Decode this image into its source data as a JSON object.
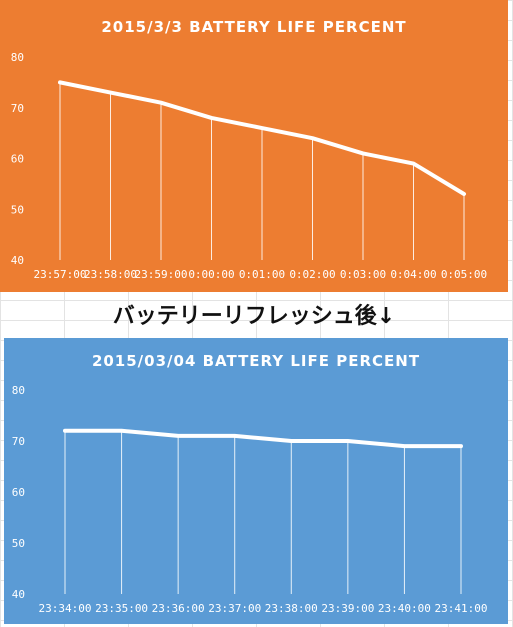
{
  "caption": "バッテリーリフレッシュ後↓",
  "chart_data": [
    {
      "type": "line",
      "title": "2015/3/3   BATTERY LIFE PERCENT",
      "background": "#ED7D31",
      "line_color": "#FFFFFF",
      "categories": [
        "23:57:00",
        "23:58:00",
        "23:59:00",
        "0:00:00",
        "0:01:00",
        "0:02:00",
        "0:03:00",
        "0:04:00",
        "0:05:00"
      ],
      "values": [
        75,
        73,
        71,
        68,
        66,
        64,
        61,
        59,
        53
      ],
      "ylim": [
        40,
        80
      ],
      "yticks": [
        40,
        50,
        60,
        70,
        80
      ],
      "drop_lines": true,
      "grid": false
    },
    {
      "type": "line",
      "title": "2015/03/04 BATTERY LIFE PERCENT",
      "background": "#5B9BD5",
      "line_color": "#FFFFFF",
      "categories": [
        "23:34:00",
        "23:35:00",
        "23:36:00",
        "23:37:00",
        "23:38:00",
        "23:39:00",
        "23:40:00",
        "23:41:00"
      ],
      "values": [
        72,
        72,
        71,
        71,
        70,
        70,
        69,
        69
      ],
      "ylim": [
        40,
        80
      ],
      "yticks": [
        40,
        50,
        60,
        70,
        80
      ],
      "drop_lines": true,
      "grid": false
    }
  ]
}
